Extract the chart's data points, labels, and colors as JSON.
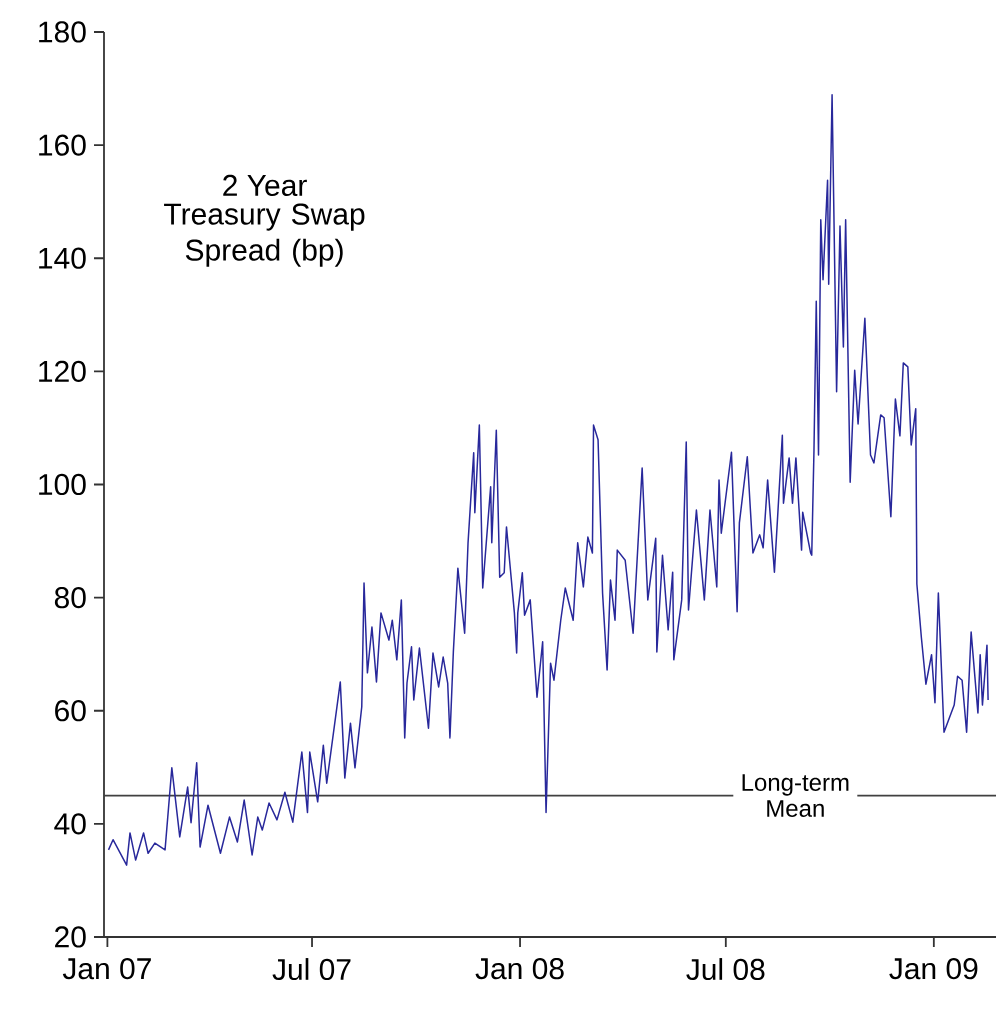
{
  "chart_data": {
    "type": "line",
    "title": "2 Year",
    "subtitle": "Treasury Swap Spread (bp)",
    "x": [
      "2007-01-02",
      "2007-01-06",
      "2007-01-18",
      "2007-01-21",
      "2007-01-26",
      "2007-02-02",
      "2007-02-06",
      "2007-02-12",
      "2007-02-21",
      "2007-02-27",
      "2007-03-06",
      "2007-03-13",
      "2007-03-16",
      "2007-03-21",
      "2007-03-24",
      "2007-03-31",
      "2007-04-11",
      "2007-04-19",
      "2007-04-26",
      "2007-05-02",
      "2007-05-09",
      "2007-05-14",
      "2007-05-18",
      "2007-05-24",
      "2007-05-31",
      "2007-06-07",
      "2007-06-14",
      "2007-06-22",
      "2007-06-27",
      "2007-06-29",
      "2007-07-06",
      "2007-07-11",
      "2007-07-14",
      "2007-07-26",
      "2007-07-30",
      "2007-08-04",
      "2007-08-08",
      "2007-08-14",
      "2007-08-16",
      "2007-08-19",
      "2007-08-23",
      "2007-08-27",
      "2007-08-31",
      "2007-09-07",
      "2007-09-10",
      "2007-09-14",
      "2007-09-18",
      "2007-09-21",
      "2007-09-23",
      "2007-09-27",
      "2007-09-29",
      "2007-10-04",
      "2007-10-12",
      "2007-10-16",
      "2007-10-21",
      "2007-10-25",
      "2007-10-29",
      "2007-10-31",
      "2007-11-03",
      "2007-11-07",
      "2007-11-13",
      "2007-11-16",
      "2007-11-21",
      "2007-11-22",
      "2007-11-26",
      "2007-11-29",
      "2007-12-06",
      "2007-12-07",
      "2007-12-11",
      "2007-12-14",
      "2007-12-18",
      "2007-12-20",
      "2007-12-27",
      "2007-12-29",
      "2007-12-30",
      "2008-01-03",
      "2008-01-05",
      "2008-01-10",
      "2008-01-16",
      "2008-01-21",
      "2008-01-24",
      "2008-01-28",
      "2008-01-31",
      "2008-02-06",
      "2008-02-10",
      "2008-02-17",
      "2008-02-21",
      "2008-02-26",
      "2008-03-01",
      "2008-03-05",
      "2008-03-06",
      "2008-03-10",
      "2008-03-14",
      "2008-03-18",
      "2008-03-21",
      "2008-03-25",
      "2008-03-27",
      "2008-04-03",
      "2008-04-10",
      "2008-04-18",
      "2008-04-23",
      "2008-04-30",
      "2008-05-01",
      "2008-05-06",
      "2008-05-11",
      "2008-05-15",
      "2008-05-16",
      "2008-05-23",
      "2008-05-27",
      "2008-05-29",
      "2008-06-05",
      "2008-06-12",
      "2008-06-17",
      "2008-06-23",
      "2008-06-25",
      "2008-06-27",
      "2008-07-06",
      "2008-07-11",
      "2008-07-13",
      "2008-07-20",
      "2008-07-25",
      "2008-07-31",
      "2008-08-03",
      "2008-08-07",
      "2008-08-13",
      "2008-08-20",
      "2008-08-21",
      "2008-08-26",
      "2008-08-29",
      "2008-09-01",
      "2008-09-06",
      "2008-09-07",
      "2008-09-14",
      "2008-09-15",
      "2008-09-17",
      "2008-09-19",
      "2008-09-21",
      "2008-09-23",
      "2008-09-25",
      "2008-09-29",
      "2008-09-30",
      "2008-10-03",
      "2008-10-07",
      "2008-10-10",
      "2008-10-13",
      "2008-10-15",
      "2008-10-19",
      "2008-10-23",
      "2008-10-26",
      "2008-11-01",
      "2008-11-06",
      "2008-11-09",
      "2008-11-15",
      "2008-11-18",
      "2008-11-24",
      "2008-11-28",
      "2008-12-02",
      "2008-12-05",
      "2008-12-09",
      "2008-12-12",
      "2008-12-16",
      "2008-12-17",
      "2008-12-21",
      "2008-12-25",
      "2008-12-30",
      "2009-01-02",
      "2009-01-05",
      "2009-01-10",
      "2009-01-19",
      "2009-01-22",
      "2009-01-26",
      "2009-01-30",
      "2009-02-03",
      "2009-02-09",
      "2009-02-11",
      "2009-02-13",
      "2009-02-17",
      "2009-02-18"
    ],
    "series": [
      {
        "color": "#28289b",
        "values": [
          35.4,
          37.2,
          32.7,
          38.4,
          33.6,
          38.4,
          34.8,
          36.6,
          35.4,
          49.9,
          37.7,
          46.5,
          40.2,
          50.8,
          35.9,
          43.3,
          34.8,
          41.2,
          36.8,
          44.2,
          34.5,
          41.2,
          38.9,
          43.7,
          40.7,
          45.6,
          40.3,
          52.7,
          42.0,
          52.7,
          43.9,
          53.9,
          47.2,
          65.1,
          48.1,
          57.8,
          49.9,
          60.7,
          82.6,
          66.7,
          74.8,
          65.1,
          77.3,
          72.5,
          76.0,
          69.0,
          79.6,
          55.2,
          64.9,
          71.3,
          61.9,
          71.1,
          56.9,
          70.2,
          64.2,
          69.5,
          64.9,
          55.2,
          70.4,
          85.2,
          73.7,
          89.7,
          105.6,
          95.0,
          110.5,
          81.7,
          99.6,
          89.7,
          109.6,
          83.6,
          84.4,
          92.5,
          77.3,
          70.2,
          77.3,
          84.4,
          76.9,
          79.6,
          62.4,
          72.2,
          42.0,
          68.4,
          65.4,
          76.0,
          81.7,
          76.0,
          89.7,
          81.9,
          90.7,
          87.9,
          110.5,
          107.9,
          80.8,
          67.2,
          83.1,
          76.0,
          88.4,
          86.6,
          73.7,
          102.9,
          79.6,
          90.5,
          70.4,
          87.5,
          74.3,
          84.5,
          69.0,
          79.6,
          107.5,
          77.8,
          95.5,
          79.6,
          95.5,
          81.9,
          100.8,
          91.4,
          105.7,
          77.5,
          93.2,
          104.9,
          87.9,
          91.1,
          88.8,
          100.8,
          84.5,
          108.7,
          96.7,
          104.7,
          96.7,
          104.7,
          88.4,
          95.1,
          87.9,
          87.5,
          106.1,
          132.4,
          105.2,
          146.8,
          136.2,
          153.8,
          135.4,
          168.9,
          116.4,
          145.7,
          124.3,
          146.8,
          100.4,
          120.2,
          110.7,
          129.4,
          105.2,
          103.8,
          112.3,
          111.8,
          94.3,
          115.1,
          108.6,
          121.5,
          120.8,
          107.0,
          113.4,
          82.4,
          72.9,
          64.7,
          69.9,
          61.4,
          80.8,
          56.2,
          61.0,
          66.1,
          65.4,
          56.2,
          73.9,
          59.6,
          69.9,
          61.0,
          71.6,
          61.9
        ]
      }
    ],
    "xlim": [
      "2006-12-29",
      "2009-02-25"
    ],
    "xticks": [
      {
        "value": "2007-01-01",
        "label": "Jan 07"
      },
      {
        "value": "2007-07-01",
        "label": "Jul 07"
      },
      {
        "value": "2008-01-01",
        "label": "Jan 08"
      },
      {
        "value": "2008-07-01",
        "label": "Jul 08"
      },
      {
        "value": "2009-01-01",
        "label": "Jan 09"
      }
    ],
    "ylim": [
      20,
      180
    ],
    "yticks": [
      20,
      40,
      60,
      80,
      100,
      120,
      140,
      160,
      180
    ],
    "ref_lines": [
      {
        "axis": "y",
        "value": 45,
        "label": "Long-term Mean",
        "color": "#404040"
      }
    ]
  }
}
